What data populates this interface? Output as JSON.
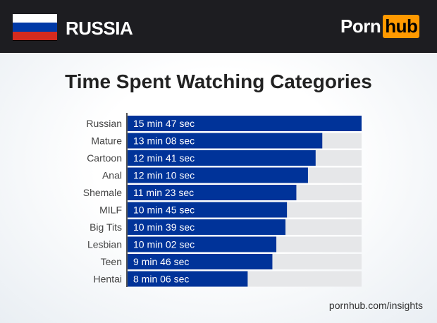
{
  "header": {
    "country": "RUSSIA",
    "flag_colors": [
      "#ffffff",
      "#0039a6",
      "#d52b1e"
    ],
    "logo_left": "Porn",
    "logo_right": "hub",
    "logo_accent": "#ff9900"
  },
  "chart_data": {
    "type": "bar",
    "orientation": "horizontal",
    "title": "Time Spent Watching Categories",
    "categories": [
      "Russian",
      "Mature",
      "Cartoon",
      "Anal",
      "Shemale",
      "MILF",
      "Big Tits",
      "Lesbian",
      "Teen",
      "Hentai"
    ],
    "values_seconds": [
      947,
      788,
      761,
      730,
      683,
      645,
      639,
      602,
      586,
      486
    ],
    "labels": [
      "15 min 47 sec",
      "13 min 08 sec",
      "12 min 41 sec",
      "12 min 10 sec",
      "11 min 23 sec",
      "10 min 45 sec",
      "10 min 39 sec",
      "10 min 02 sec",
      "9 min 46 sec",
      "8 min 06 sec"
    ],
    "bar_color": "#003399",
    "track_color": "#e6e7e9"
  },
  "footer": "pornhub.com/insights"
}
